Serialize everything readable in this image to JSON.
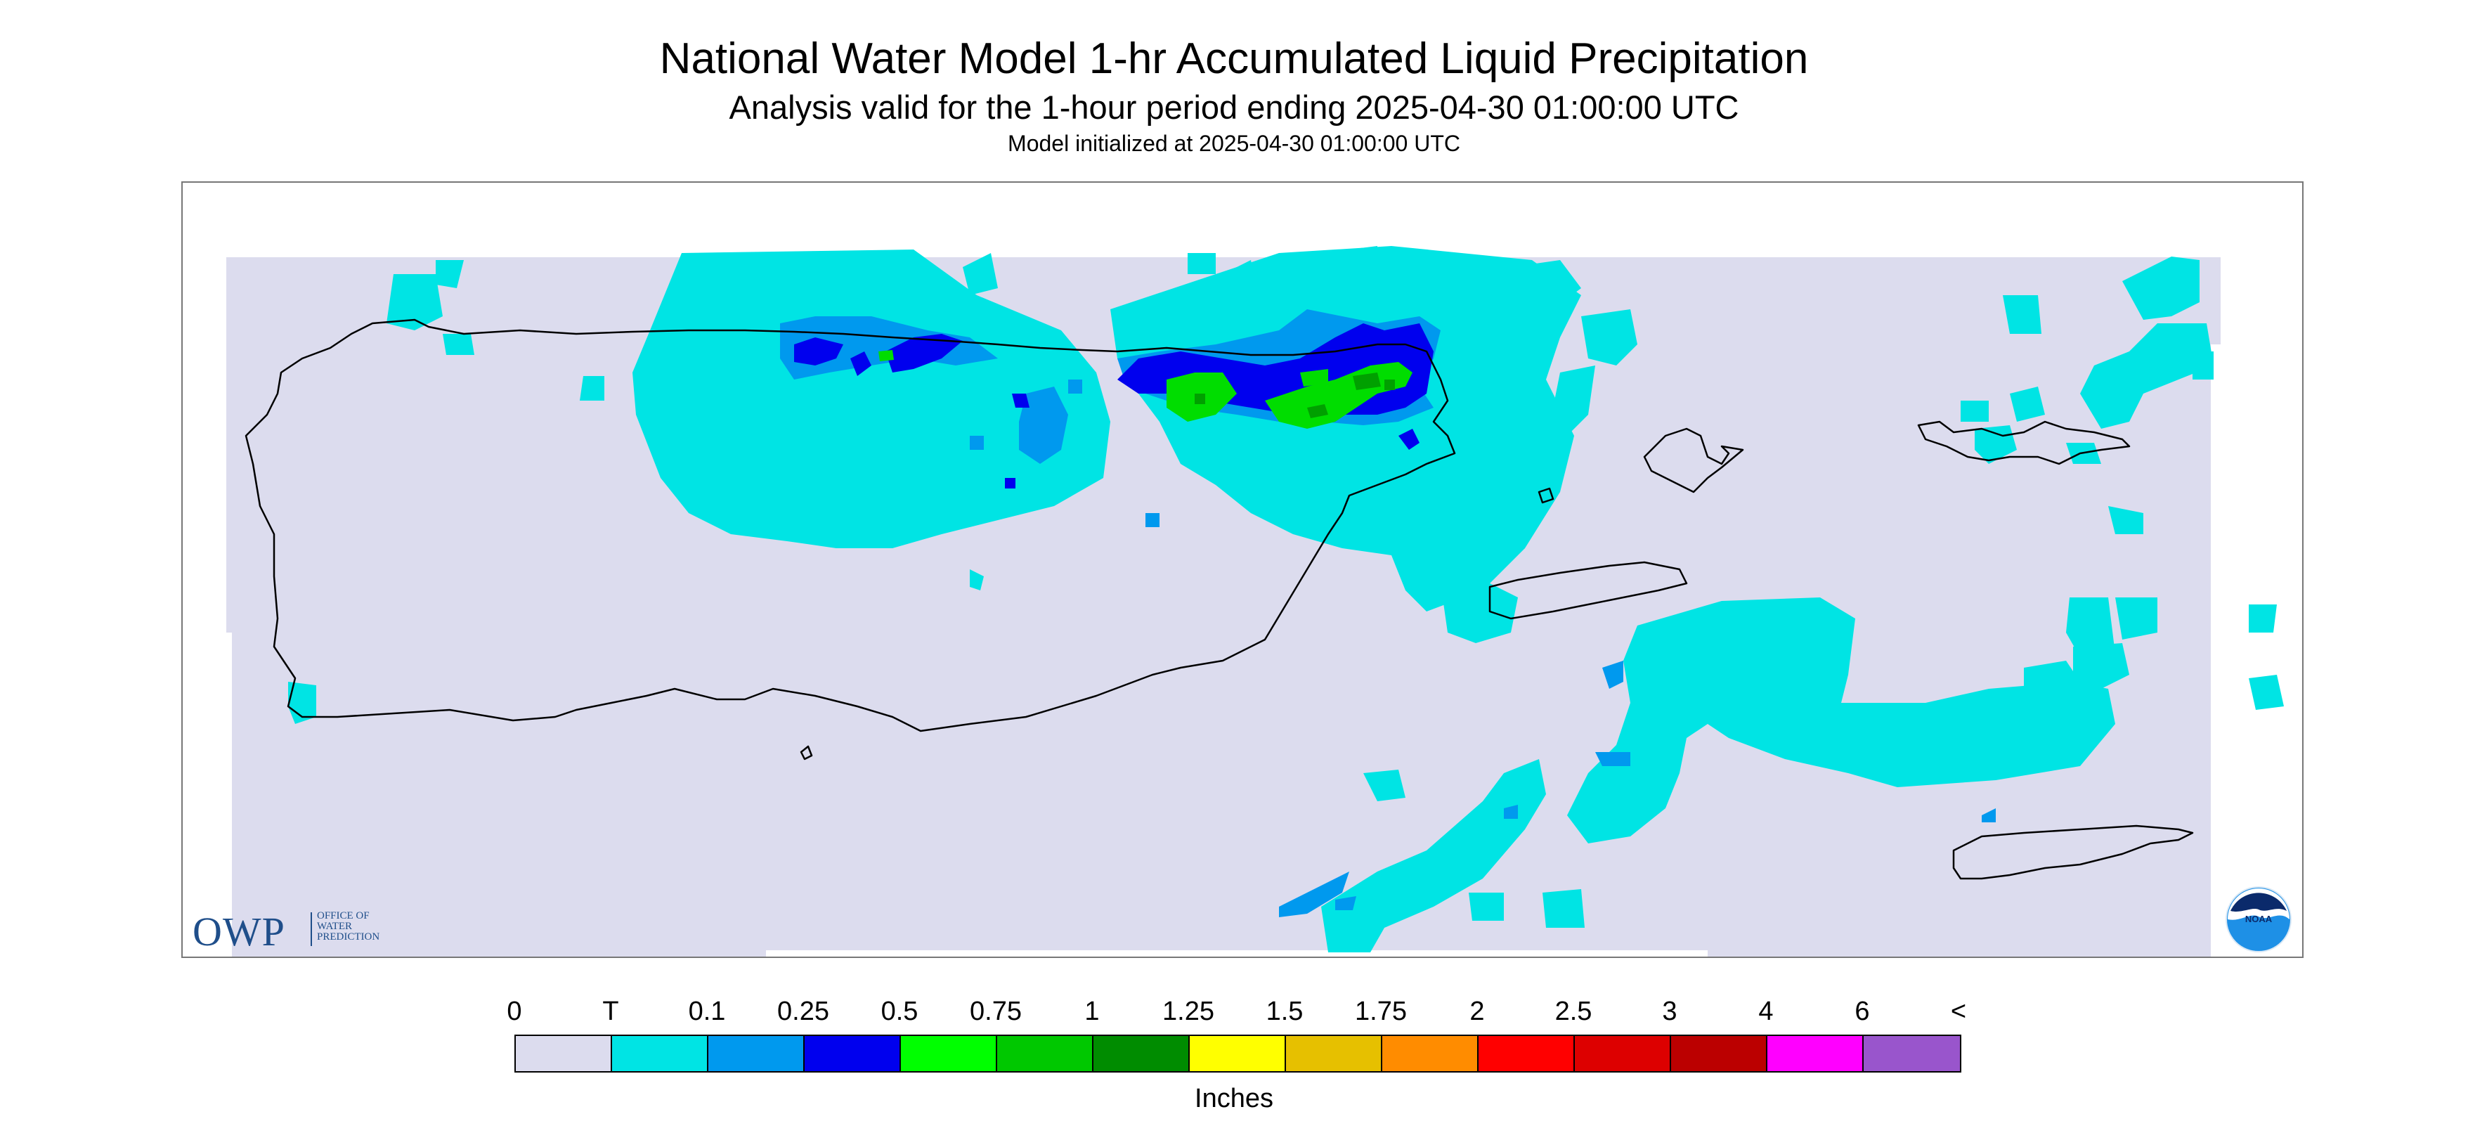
{
  "header": {
    "title": "National Water Model 1-hr Accumulated Liquid Precipitation",
    "subtitle": "Analysis valid for the 1-hour period ending 2025-04-30 01:00:00 UTC",
    "init_line": "Model initialized at 2025-04-30 01:00:00 UTC"
  },
  "logos": {
    "owp_letters": "OWP",
    "owp_line1": "OFFICE OF",
    "owp_line2": "WATER",
    "owp_line3": "PREDICTION",
    "noaa": "NOAA"
  },
  "legend": {
    "tick_labels": [
      "0",
      "T",
      "0.1",
      "0.25",
      "0.5",
      "0.75",
      "1",
      "1.25",
      "1.5",
      "1.75",
      "2",
      "2.5",
      "3",
      "4",
      "6",
      "<"
    ],
    "colors": [
      "#dcdcee",
      "#00e4e4",
      "#0099ee",
      "#0000ee",
      "#00ff00",
      "#00c800",
      "#008c00",
      "#ffff00",
      "#e6c000",
      "#ff8c00",
      "#ff0000",
      "#dd0000",
      "#bb0000",
      "#ff00ff",
      "#9955cc"
    ],
    "units": "Inches"
  },
  "colors": {
    "background_no_precip": "#dcdcee",
    "trace": "#00e4e4",
    "light": "#0099ee",
    "moderate": "#0000ee",
    "heavy": "#00cc00",
    "heavy_dark": "#009900",
    "coastline": "#000000"
  }
}
